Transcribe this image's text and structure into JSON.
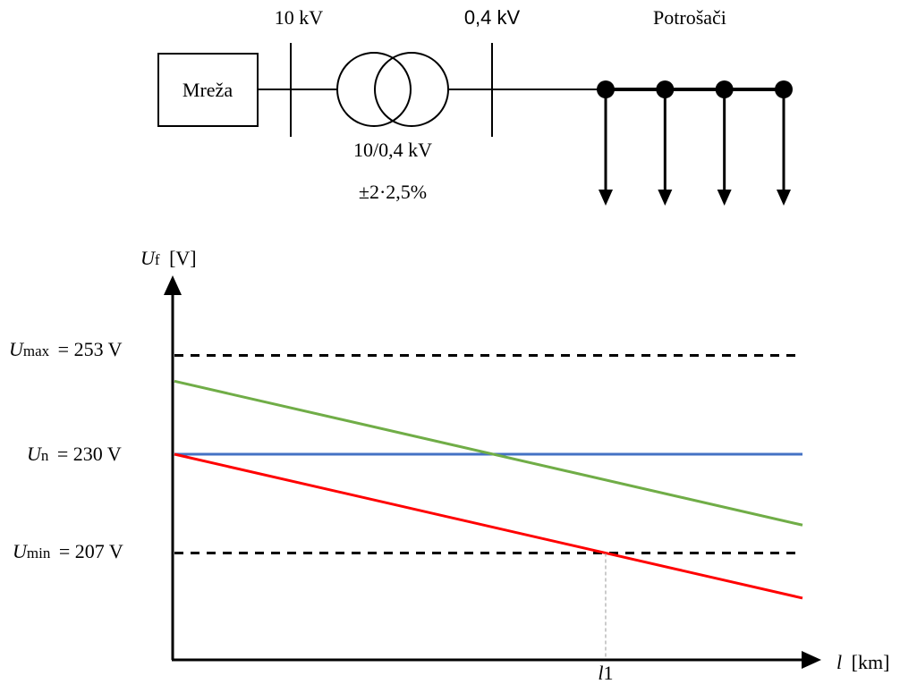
{
  "diagram": {
    "grid_box_label": "Mreža",
    "bus_hv_label": "10 kV",
    "bus_lv_label": "0,4 kV",
    "transformer_ratio": "10/0,4 kV",
    "transformer_taps": "±2·2,5%",
    "consumers_label": "Potrošači",
    "consumer_count": 4
  },
  "chart_data": {
    "type": "line",
    "y_axis": {
      "symbol": "U",
      "subscript": "f",
      "unit": "[V]"
    },
    "x_axis": {
      "symbol": "l",
      "unit": "[km]",
      "marked_point": {
        "symbol": "l",
        "subscript": "1"
      }
    },
    "reference_levels": [
      {
        "symbol": "U",
        "subscript": "max",
        "text": "= 253 V",
        "value": 253,
        "style": "dashed",
        "color": "#000000"
      },
      {
        "symbol": "U",
        "subscript": "n",
        "text": "= 230 V",
        "value": 230,
        "style": "none",
        "color": "#000000"
      },
      {
        "symbol": "U",
        "subscript": "min",
        "text": "= 207 V",
        "value": 207,
        "style": "dashed",
        "color": "#000000"
      }
    ],
    "series": [
      {
        "color": "#4472c4",
        "start": 230,
        "end": 230
      },
      {
        "color": "#70ad47",
        "start": 247,
        "end": 213.5
      },
      {
        "color": "#ff0000",
        "start": 230,
        "end": 196.5
      }
    ]
  }
}
